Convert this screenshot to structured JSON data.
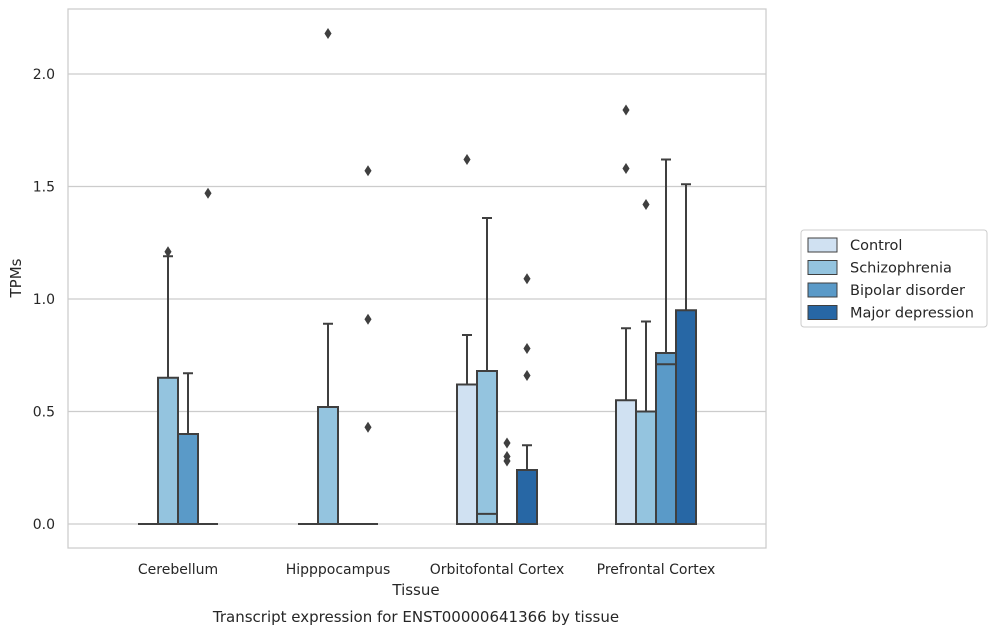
{
  "chart_data": {
    "type": "box",
    "title": "Transcript expression for ENST00000641366 by tissue",
    "xlabel": "Tissue",
    "ylabel": "TPMs",
    "ylim": [
      -0.11,
      2.3
    ],
    "yticks": [
      "0.0",
      "0.5",
      "1.0",
      "1.5",
      "2.0"
    ],
    "ytick_values": [
      0.0,
      0.5,
      1.0,
      1.5,
      2.0
    ],
    "grid": "horizontal",
    "legend_position": "right",
    "categories": [
      "Cerebellum",
      "Hipppocampus",
      "Orbitofontal Cortex",
      "Prefrontal Cortex"
    ],
    "series": [
      {
        "name": "Control",
        "color": "#d0e1f2",
        "boxes": [
          {
            "q1": 0,
            "median": 0,
            "q3": 0,
            "lower": 0,
            "upper": 0,
            "outliers": []
          },
          {
            "q1": 0,
            "median": 0,
            "q3": 0,
            "lower": 0,
            "upper": 0,
            "outliers": []
          },
          {
            "q1": 0,
            "median": 0,
            "q3": 0.62,
            "lower": 0,
            "upper": 0.84,
            "outliers": [
              1.62
            ]
          },
          {
            "q1": 0,
            "median": 0,
            "q3": 0.55,
            "lower": 0,
            "upper": 0.87,
            "outliers": [
              1.58,
              1.84
            ]
          }
        ]
      },
      {
        "name": "Schizophrenia",
        "color": "#94c4df",
        "boxes": [
          {
            "q1": 0,
            "median": 0,
            "q3": 0.65,
            "lower": 0,
            "upper": 1.19,
            "outliers": [
              1.21
            ]
          },
          {
            "q1": 0,
            "median": 0,
            "q3": 0.52,
            "lower": 0,
            "upper": 0.89,
            "outliers": [
              2.18
            ]
          },
          {
            "q1": 0,
            "median": 0.045,
            "q3": 0.68,
            "lower": 0,
            "upper": 1.36,
            "outliers": []
          },
          {
            "q1": 0,
            "median": 0,
            "q3": 0.5,
            "lower": 0,
            "upper": 0.9,
            "outliers": [
              1.42
            ]
          }
        ]
      },
      {
        "name": "Bipolar disorder",
        "color": "#5a9ac8",
        "boxes": [
          {
            "q1": 0,
            "median": 0,
            "q3": 0.4,
            "lower": 0,
            "upper": 0.67,
            "outliers": []
          },
          {
            "q1": 0,
            "median": 0,
            "q3": 0,
            "lower": 0,
            "upper": 0,
            "outliers": []
          },
          {
            "q1": 0,
            "median": 0,
            "q3": 0,
            "lower": 0,
            "upper": 0,
            "outliers": [
              0.36,
              0.3,
              0.28
            ]
          },
          {
            "q1": 0,
            "median": 0.71,
            "q3": 0.76,
            "lower": 0,
            "upper": 1.62,
            "outliers": []
          }
        ]
      },
      {
        "name": "Major depression",
        "color": "#2767a5",
        "boxes": [
          {
            "q1": 0,
            "median": 0,
            "q3": 0,
            "lower": 0,
            "upper": 0,
            "outliers": [
              1.47
            ]
          },
          {
            "q1": 0,
            "median": 0,
            "q3": 0,
            "lower": 0,
            "upper": 0,
            "outliers": [
              1.57,
              0.91,
              0.43
            ]
          },
          {
            "q1": 0,
            "median": 0,
            "q3": 0.24,
            "lower": 0,
            "upper": 0.35,
            "outliers": [
              1.09,
              0.78,
              0.66
            ]
          },
          {
            "q1": 0,
            "median": 0,
            "q3": 0.95,
            "lower": 0,
            "upper": 1.51,
            "outliers": []
          }
        ]
      }
    ]
  }
}
